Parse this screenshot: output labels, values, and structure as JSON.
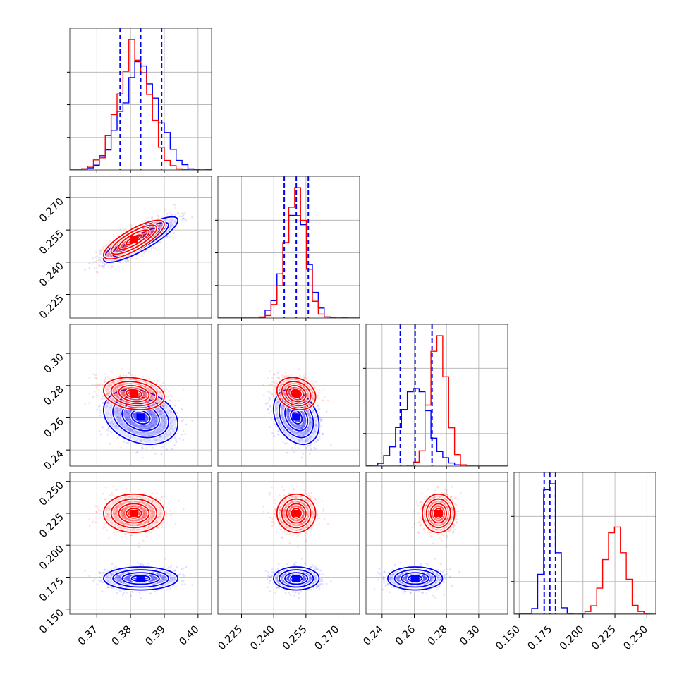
{
  "chart_data": {
    "type": "corner",
    "grid": true,
    "parameters": [
      {
        "range": [
          0.362,
          0.404
        ],
        "ticks": [
          0.37,
          0.38,
          0.39,
          0.4
        ],
        "tick_labels": [
          "0.37",
          "0.38",
          "0.39",
          "0.40"
        ]
      },
      {
        "range": [
          0.214,
          0.28
        ],
        "ticks": [
          0.225,
          0.24,
          0.255,
          0.27
        ],
        "tick_labels": [
          "0.225",
          "0.240",
          "0.255",
          "0.270"
        ]
      },
      {
        "range": [
          0.23,
          0.318
        ],
        "ticks": [
          0.24,
          0.26,
          0.28,
          0.3
        ],
        "tick_labels": [
          "0.24",
          "0.26",
          "0.28",
          "0.30"
        ]
      },
      {
        "range": [
          0.146,
          0.257
        ],
        "ticks": [
          0.15,
          0.175,
          0.2,
          0.225,
          0.25
        ],
        "tick_labels": [
          "0.150",
          "0.175",
          "0.200",
          "0.225",
          "0.250"
        ]
      }
    ],
    "series": [
      {
        "color": "#0000ff",
        "mean": [
          0.383,
          0.2505,
          0.2605,
          0.174
        ],
        "std": [
          0.0055,
          0.0053,
          0.0085,
          0.0045
        ],
        "rho": [
          [
            0,
            1
          ],
          0.85,
          [
            0,
            2
          ],
          -0.25,
          [
            1,
            2
          ],
          -0.3
        ]
      },
      {
        "color": "#ff0000",
        "mean": [
          0.381,
          0.2505,
          0.275,
          0.225
        ],
        "std": [
          0.0045,
          0.0045,
          0.005,
          0.0075
        ],
        "rho": [
          [
            0,
            1
          ],
          0.8,
          [
            0,
            2
          ],
          -0.2,
          [
            1,
            2
          ],
          -0.2
        ]
      }
    ],
    "quantile_lines": {
      "color": "#0000ff",
      "values": [
        [
          0.3769,
          0.383,
          0.3892
        ],
        [
          0.2449,
          0.2505,
          0.2561
        ],
        [
          0.2513,
          0.2605,
          0.271
        ],
        [
          0.1696,
          0.174,
          0.1785
        ]
      ]
    }
  }
}
